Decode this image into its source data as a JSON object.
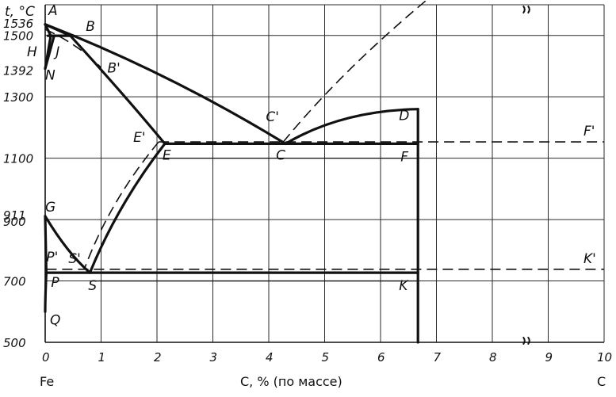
{
  "chart_data": {
    "type": "diagram",
    "ylabel": "t, °C",
    "xlabel": "C, % (по массе)",
    "x_left_label": "Fe",
    "x_right_label": "C",
    "xlim": [
      0,
      10
    ],
    "ylim": [
      500,
      1600
    ],
    "x_ticks": [
      "0",
      "1",
      "2",
      "3",
      "4",
      "5",
      "6",
      "7",
      "8",
      "9",
      "10"
    ],
    "y_ticks": [
      {
        "value": 1536,
        "label": "1536"
      },
      {
        "value": 1500,
        "label": "1500"
      },
      {
        "value": 1392,
        "label": "1392"
      },
      {
        "value": 1300,
        "label": "1300"
      },
      {
        "value": 1100,
        "label": "1100"
      },
      {
        "value": 911,
        "label": "911"
      },
      {
        "value": 900,
        "label": "900"
      },
      {
        "value": 700,
        "label": "700"
      },
      {
        "value": 500,
        "label": "500"
      }
    ],
    "points": [
      {
        "label": "A",
        "x": 0,
        "y": 1536
      },
      {
        "label": "B",
        "x": 0.5,
        "y": 1499
      },
      {
        "label": "H",
        "x": 0.1,
        "y": 1499
      },
      {
        "label": "J",
        "x": 0.16,
        "y": 1499
      },
      {
        "label": "N",
        "x": 0,
        "y": 1392
      },
      {
        "label": "B'",
        "x": 1.0,
        "y": 1395
      },
      {
        "label": "E'",
        "x": 2.03,
        "y": 1153
      },
      {
        "label": "E",
        "x": 2.14,
        "y": 1147
      },
      {
        "label": "C'",
        "x": 4.26,
        "y": 1153
      },
      {
        "label": "C",
        "x": 4.3,
        "y": 1147
      },
      {
        "label": "D",
        "x": 6.67,
        "y": 1260
      },
      {
        "label": "F",
        "x": 6.67,
        "y": 1147
      },
      {
        "label": "F'",
        "x": 10,
        "y": 1153
      },
      {
        "label": "G",
        "x": 0,
        "y": 911
      },
      {
        "label": "P'",
        "x": 0.02,
        "y": 738
      },
      {
        "label": "P",
        "x": 0.02,
        "y": 727
      },
      {
        "label": "S'",
        "x": 0.7,
        "y": 738
      },
      {
        "label": "S",
        "x": 0.8,
        "y": 727
      },
      {
        "label": "K",
        "x": 6.67,
        "y": 727
      },
      {
        "label": "K'",
        "x": 10,
        "y": 738
      },
      {
        "label": "Q",
        "x": 0,
        "y": 600
      }
    ]
  }
}
